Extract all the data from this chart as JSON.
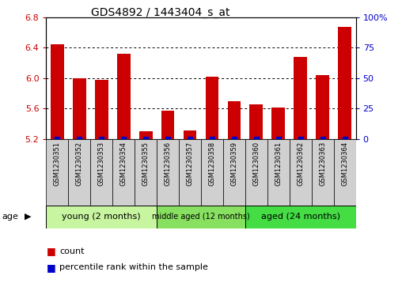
{
  "title": "GDS4892 / 1443404_s_at",
  "samples": [
    "GSM1230351",
    "GSM1230352",
    "GSM1230353",
    "GSM1230354",
    "GSM1230355",
    "GSM1230356",
    "GSM1230357",
    "GSM1230358",
    "GSM1230359",
    "GSM1230360",
    "GSM1230361",
    "GSM1230362",
    "GSM1230363",
    "GSM1230364"
  ],
  "counts": [
    6.45,
    6.0,
    5.98,
    6.32,
    5.3,
    5.57,
    5.31,
    6.02,
    5.7,
    5.66,
    5.62,
    6.28,
    6.04,
    6.67
  ],
  "percentiles": [
    0,
    0,
    0,
    0,
    0,
    0,
    0,
    0,
    0,
    0,
    0,
    0,
    0,
    0
  ],
  "ylim_left": [
    5.2,
    6.8
  ],
  "ylim_right": [
    0,
    100
  ],
  "yticks_left": [
    5.2,
    5.6,
    6.0,
    6.4,
    6.8
  ],
  "yticks_right": [
    0,
    25,
    50,
    75,
    100
  ],
  "ytick_labels_right": [
    "0",
    "25",
    "50",
    "75",
    "100%"
  ],
  "bar_color": "#cc0000",
  "percentile_color": "#0000cc",
  "groups": [
    {
      "label": "young (2 months)",
      "start": 0,
      "end": 5
    },
    {
      "label": "middle aged (12 months)",
      "start": 5,
      "end": 9
    },
    {
      "label": "aged (24 months)",
      "start": 9,
      "end": 14
    }
  ],
  "group_colors": [
    "#c8f5a0",
    "#88e060",
    "#44dd44"
  ],
  "age_label": "age",
  "legend_count_label": "count",
  "legend_percentile_label": "percentile rank within the sample",
  "sample_cell_color": "#d0d0d0",
  "fig_width": 5.08,
  "fig_height": 3.63
}
